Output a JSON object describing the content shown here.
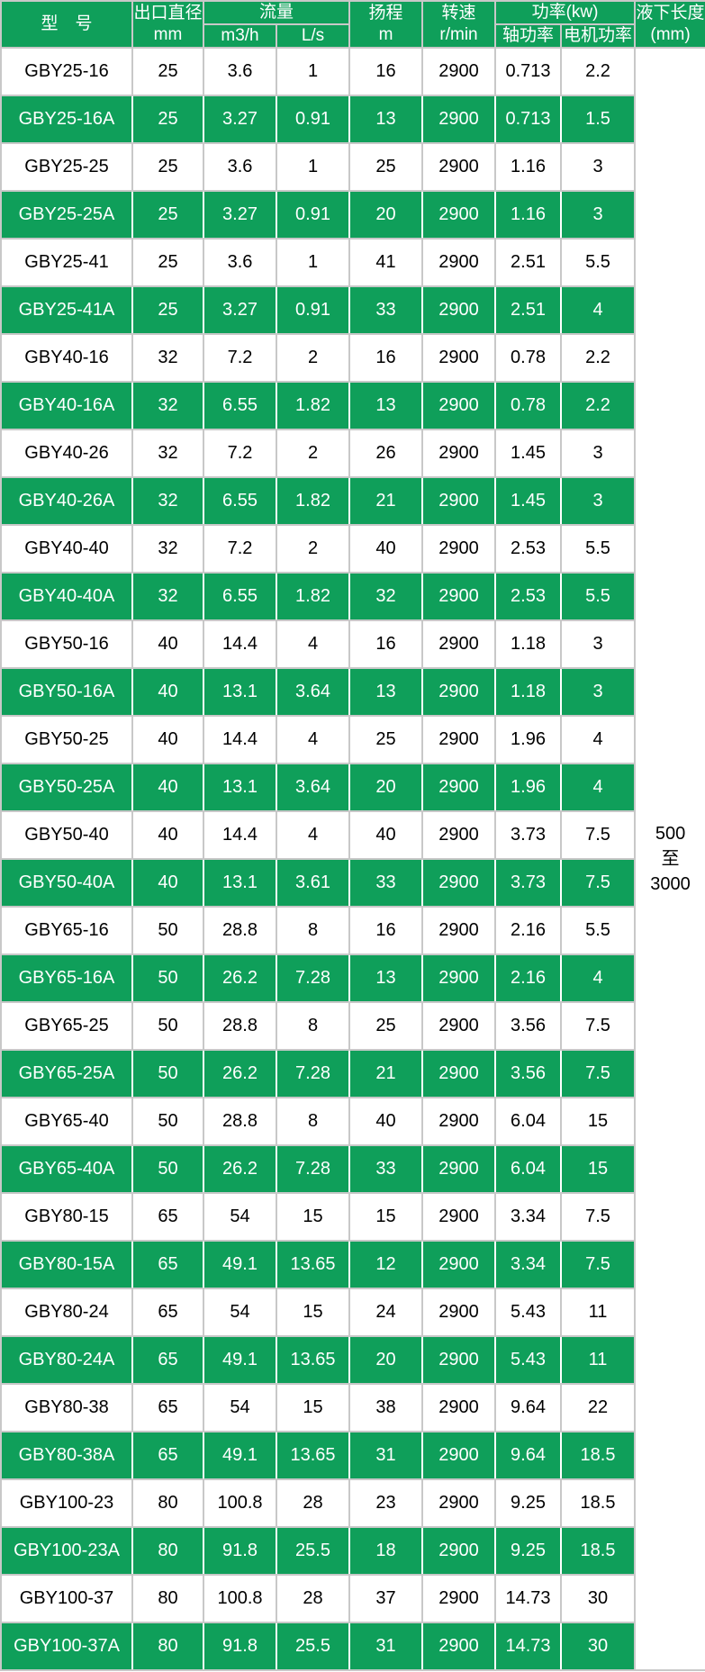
{
  "colors": {
    "header_row_green": "#0f9f5a",
    "grid_line": "#c8c8c8",
    "green_row_text": "#ffffff",
    "white_row_text": "#000000"
  },
  "table": {
    "headers": {
      "model": "型　号",
      "outlet_diameter_line1": "出口直径",
      "outlet_diameter_line2": "mm",
      "flow": "流量",
      "flow_m3h": "m3/h",
      "flow_ls": "L/s",
      "head_line1": "扬程",
      "head_line2": "m",
      "speed_line1": "转速",
      "speed_line2": "r/min",
      "power": "功率(kw)",
      "power_shaft": "轴功率",
      "power_motor": "电机功率",
      "submerged_line1": "液下长度",
      "submerged_line2": "(mm)"
    },
    "submerged_length_lines": [
      "500",
      "至",
      "3000"
    ],
    "rows": [
      {
        "model": "GBY25-16",
        "outlet_mm": "25",
        "flow_m3h": "3.6",
        "flow_ls": "1",
        "head_m": "16",
        "speed_rmin": "2900",
        "shaft_kw": "0.713",
        "motor_kw": "2.2"
      },
      {
        "model": "GBY25-16A",
        "outlet_mm": "25",
        "flow_m3h": "3.27",
        "flow_ls": "0.91",
        "head_m": "13",
        "speed_rmin": "2900",
        "shaft_kw": "0.713",
        "motor_kw": "1.5"
      },
      {
        "model": "GBY25-25",
        "outlet_mm": "25",
        "flow_m3h": "3.6",
        "flow_ls": "1",
        "head_m": "25",
        "speed_rmin": "2900",
        "shaft_kw": "1.16",
        "motor_kw": "3"
      },
      {
        "model": "GBY25-25A",
        "outlet_mm": "25",
        "flow_m3h": "3.27",
        "flow_ls": "0.91",
        "head_m": "20",
        "speed_rmin": "2900",
        "shaft_kw": "1.16",
        "motor_kw": "3"
      },
      {
        "model": "GBY25-41",
        "outlet_mm": "25",
        "flow_m3h": "3.6",
        "flow_ls": "1",
        "head_m": "41",
        "speed_rmin": "2900",
        "shaft_kw": "2.51",
        "motor_kw": "5.5"
      },
      {
        "model": "GBY25-41A",
        "outlet_mm": "25",
        "flow_m3h": "3.27",
        "flow_ls": "0.91",
        "head_m": "33",
        "speed_rmin": "2900",
        "shaft_kw": "2.51",
        "motor_kw": "4"
      },
      {
        "model": "GBY40-16",
        "outlet_mm": "32",
        "flow_m3h": "7.2",
        "flow_ls": "2",
        "head_m": "16",
        "speed_rmin": "2900",
        "shaft_kw": "0.78",
        "motor_kw": "2.2"
      },
      {
        "model": "GBY40-16A",
        "outlet_mm": "32",
        "flow_m3h": "6.55",
        "flow_ls": "1.82",
        "head_m": "13",
        "speed_rmin": "2900",
        "shaft_kw": "0.78",
        "motor_kw": "2.2"
      },
      {
        "model": "GBY40-26",
        "outlet_mm": "32",
        "flow_m3h": "7.2",
        "flow_ls": "2",
        "head_m": "26",
        "speed_rmin": "2900",
        "shaft_kw": "1.45",
        "motor_kw": "3"
      },
      {
        "model": "GBY40-26A",
        "outlet_mm": "32",
        "flow_m3h": "6.55",
        "flow_ls": "1.82",
        "head_m": "21",
        "speed_rmin": "2900",
        "shaft_kw": "1.45",
        "motor_kw": "3"
      },
      {
        "model": "GBY40-40",
        "outlet_mm": "32",
        "flow_m3h": "7.2",
        "flow_ls": "2",
        "head_m": "40",
        "speed_rmin": "2900",
        "shaft_kw": "2.53",
        "motor_kw": "5.5"
      },
      {
        "model": "GBY40-40A",
        "outlet_mm": "32",
        "flow_m3h": "6.55",
        "flow_ls": "1.82",
        "head_m": "32",
        "speed_rmin": "2900",
        "shaft_kw": "2.53",
        "motor_kw": "5.5"
      },
      {
        "model": "GBY50-16",
        "outlet_mm": "40",
        "flow_m3h": "14.4",
        "flow_ls": "4",
        "head_m": "16",
        "speed_rmin": "2900",
        "shaft_kw": "1.18",
        "motor_kw": "3"
      },
      {
        "model": "GBY50-16A",
        "outlet_mm": "40",
        "flow_m3h": "13.1",
        "flow_ls": "3.64",
        "head_m": "13",
        "speed_rmin": "2900",
        "shaft_kw": "1.18",
        "motor_kw": "3"
      },
      {
        "model": "GBY50-25",
        "outlet_mm": "40",
        "flow_m3h": "14.4",
        "flow_ls": "4",
        "head_m": "25",
        "speed_rmin": "2900",
        "shaft_kw": "1.96",
        "motor_kw": "4"
      },
      {
        "model": "GBY50-25A",
        "outlet_mm": "40",
        "flow_m3h": "13.1",
        "flow_ls": "3.64",
        "head_m": "20",
        "speed_rmin": "2900",
        "shaft_kw": "1.96",
        "motor_kw": "4"
      },
      {
        "model": "GBY50-40",
        "outlet_mm": "40",
        "flow_m3h": "14.4",
        "flow_ls": "4",
        "head_m": "40",
        "speed_rmin": "2900",
        "shaft_kw": "3.73",
        "motor_kw": "7.5"
      },
      {
        "model": "GBY50-40A",
        "outlet_mm": "40",
        "flow_m3h": "13.1",
        "flow_ls": "3.61",
        "head_m": "33",
        "speed_rmin": "2900",
        "shaft_kw": "3.73",
        "motor_kw": "7.5"
      },
      {
        "model": "GBY65-16",
        "outlet_mm": "50",
        "flow_m3h": "28.8",
        "flow_ls": "8",
        "head_m": "16",
        "speed_rmin": "2900",
        "shaft_kw": "2.16",
        "motor_kw": "5.5"
      },
      {
        "model": "GBY65-16A",
        "outlet_mm": "50",
        "flow_m3h": "26.2",
        "flow_ls": "7.28",
        "head_m": "13",
        "speed_rmin": "2900",
        "shaft_kw": "2.16",
        "motor_kw": "4"
      },
      {
        "model": "GBY65-25",
        "outlet_mm": "50",
        "flow_m3h": "28.8",
        "flow_ls": "8",
        "head_m": "25",
        "speed_rmin": "2900",
        "shaft_kw": "3.56",
        "motor_kw": "7.5"
      },
      {
        "model": "GBY65-25A",
        "outlet_mm": "50",
        "flow_m3h": "26.2",
        "flow_ls": "7.28",
        "head_m": "21",
        "speed_rmin": "2900",
        "shaft_kw": "3.56",
        "motor_kw": "7.5"
      },
      {
        "model": "GBY65-40",
        "outlet_mm": "50",
        "flow_m3h": "28.8",
        "flow_ls": "8",
        "head_m": "40",
        "speed_rmin": "2900",
        "shaft_kw": "6.04",
        "motor_kw": "15"
      },
      {
        "model": "GBY65-40A",
        "outlet_mm": "50",
        "flow_m3h": "26.2",
        "flow_ls": "7.28",
        "head_m": "33",
        "speed_rmin": "2900",
        "shaft_kw": "6.04",
        "motor_kw": "15"
      },
      {
        "model": "GBY80-15",
        "outlet_mm": "65",
        "flow_m3h": "54",
        "flow_ls": "15",
        "head_m": "15",
        "speed_rmin": "2900",
        "shaft_kw": "3.34",
        "motor_kw": "7.5"
      },
      {
        "model": "GBY80-15A",
        "outlet_mm": "65",
        "flow_m3h": "49.1",
        "flow_ls": "13.65",
        "head_m": "12",
        "speed_rmin": "2900",
        "shaft_kw": "3.34",
        "motor_kw": "7.5"
      },
      {
        "model": "GBY80-24",
        "outlet_mm": "65",
        "flow_m3h": "54",
        "flow_ls": "15",
        "head_m": "24",
        "speed_rmin": "2900",
        "shaft_kw": "5.43",
        "motor_kw": "11"
      },
      {
        "model": "GBY80-24A",
        "outlet_mm": "65",
        "flow_m3h": "49.1",
        "flow_ls": "13.65",
        "head_m": "20",
        "speed_rmin": "2900",
        "shaft_kw": "5.43",
        "motor_kw": "11"
      },
      {
        "model": "GBY80-38",
        "outlet_mm": "65",
        "flow_m3h": "54",
        "flow_ls": "15",
        "head_m": "38",
        "speed_rmin": "2900",
        "shaft_kw": "9.64",
        "motor_kw": "22"
      },
      {
        "model": "GBY80-38A",
        "outlet_mm": "65",
        "flow_m3h": "49.1",
        "flow_ls": "13.65",
        "head_m": "31",
        "speed_rmin": "2900",
        "shaft_kw": "9.64",
        "motor_kw": "18.5"
      },
      {
        "model": "GBY100-23",
        "outlet_mm": "80",
        "flow_m3h": "100.8",
        "flow_ls": "28",
        "head_m": "23",
        "speed_rmin": "2900",
        "shaft_kw": "9.25",
        "motor_kw": "18.5"
      },
      {
        "model": "GBY100-23A",
        "outlet_mm": "80",
        "flow_m3h": "91.8",
        "flow_ls": "25.5",
        "head_m": "18",
        "speed_rmin": "2900",
        "shaft_kw": "9.25",
        "motor_kw": "18.5"
      },
      {
        "model": "GBY100-37",
        "outlet_mm": "80",
        "flow_m3h": "100.8",
        "flow_ls": "28",
        "head_m": "37",
        "speed_rmin": "2900",
        "shaft_kw": "14.73",
        "motor_kw": "30"
      },
      {
        "model": "GBY100-37A",
        "outlet_mm": "80",
        "flow_m3h": "91.8",
        "flow_ls": "25.5",
        "head_m": "31",
        "speed_rmin": "2900",
        "shaft_kw": "14.73",
        "motor_kw": "30"
      }
    ]
  }
}
